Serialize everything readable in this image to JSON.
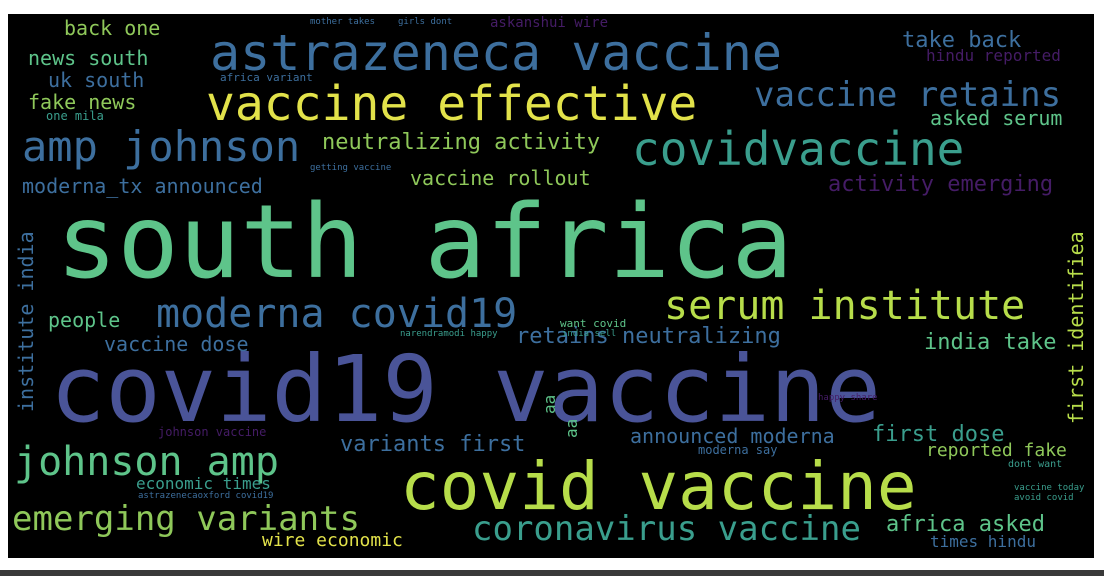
{
  "colors": {
    "background": "#000000",
    "green": "#5ec48a",
    "teal": "#3a9e8d",
    "blue": "#3d6f9e",
    "indigo": "#4a5498",
    "purple": "#451c66",
    "lime": "#b7dd4a",
    "yellow": "#e2e24a",
    "olive": "#8fc85a"
  },
  "words": [
    {
      "text": "south africa",
      "color": "#5ec48a"
    },
    {
      "text": "covid19 vaccine",
      "color": "#4a5498"
    },
    {
      "text": "covid vaccine",
      "color": "#b7dd4a"
    },
    {
      "text": "astrazeneca vaccine",
      "color": "#3d6f9e"
    },
    {
      "text": "vaccine effective",
      "color": "#e2e24a"
    },
    {
      "text": "covidvaccine",
      "color": "#3a9e8d"
    },
    {
      "text": "amp johnson",
      "color": "#3d6f9e"
    },
    {
      "text": "moderna covid19",
      "color": "#3d6f9e"
    },
    {
      "text": "serum institute",
      "color": "#b7dd4a"
    },
    {
      "text": "johnson amp",
      "color": "#5ec48a"
    },
    {
      "text": "coronavirus vaccine",
      "color": "#3a9e8d"
    },
    {
      "text": "emerging variants",
      "color": "#8fc85a"
    },
    {
      "text": "vaccine retains",
      "color": "#3d6f9e"
    },
    {
      "text": "neutralizing activity",
      "color": "#8fc85a"
    },
    {
      "text": "moderna_tx announced",
      "color": "#3d6f9e"
    },
    {
      "text": "vaccine rollout",
      "color": "#8fc85a"
    },
    {
      "text": "activity emerging",
      "color": "#451c66"
    },
    {
      "text": "take back",
      "color": "#3d6f9e"
    },
    {
      "text": "hindu reported",
      "color": "#451c66"
    },
    {
      "text": "asked serum",
      "color": "#5ec48a"
    },
    {
      "text": "back one",
      "color": "#8fc85a"
    },
    {
      "text": "news south",
      "color": "#5ec48a"
    },
    {
      "text": "uk south",
      "color": "#3d6f9e"
    },
    {
      "text": "fake news",
      "color": "#8fc85a"
    },
    {
      "text": "people",
      "color": "#5ec48a"
    },
    {
      "text": "vaccine dose",
      "color": "#3d6f9e"
    },
    {
      "text": "retains neutralizing",
      "color": "#3d6f9e"
    },
    {
      "text": "india take",
      "color": "#5ec48a"
    },
    {
      "text": "institute india",
      "color": "#3d6f9e"
    },
    {
      "text": "first identifiea",
      "color": "#b7dd4a"
    },
    {
      "text": "variants first",
      "color": "#3d6f9e"
    },
    {
      "text": "announced moderna",
      "color": "#3d6f9e"
    },
    {
      "text": "first dose",
      "color": "#3a9e8d"
    },
    {
      "text": "reported fake",
      "color": "#8fc85a"
    },
    {
      "text": "economic times",
      "color": "#3a9e8d"
    },
    {
      "text": "wire economic",
      "color": "#e2e24a"
    },
    {
      "text": "africa asked",
      "color": "#5ec48a"
    },
    {
      "text": "times hindu",
      "color": "#3d6f9e"
    },
    {
      "text": "askanshui wire",
      "color": "#451c66"
    },
    {
      "text": "one mila",
      "color": "#3a9e8d"
    },
    {
      "text": "africa variant",
      "color": "#3d6f9e"
    },
    {
      "text": "johnson vaccine",
      "color": "#451c66"
    },
    {
      "text": "moderna say",
      "color": "#3d6f9e"
    },
    {
      "text": "want covid",
      "color": "#5ec48a"
    },
    {
      "text": "india sell",
      "color": "#3a9e8d"
    },
    {
      "text": "dont want",
      "color": "#3a9e8d"
    },
    {
      "text": "mother takes",
      "color": "#3d6f9e"
    },
    {
      "text": "girls dont",
      "color": "#3d6f9e"
    },
    {
      "text": "happy share",
      "color": "#451c66"
    },
    {
      "text": "getting vaccine",
      "color": "#3d6f9e"
    },
    {
      "text": "narendramodi happy",
      "color": "#3a9e8d"
    },
    {
      "text": "vaccine today",
      "color": "#3a9e8d"
    },
    {
      "text": "avoid covid",
      "color": "#3a9e8d"
    },
    {
      "text": "astrazenecaoxford covid19",
      "color": "#3d6f9e"
    },
    {
      "text": "aa",
      "color": "#5ec48a"
    },
    {
      "text": "aa",
      "color": "#5ec48a"
    }
  ]
}
